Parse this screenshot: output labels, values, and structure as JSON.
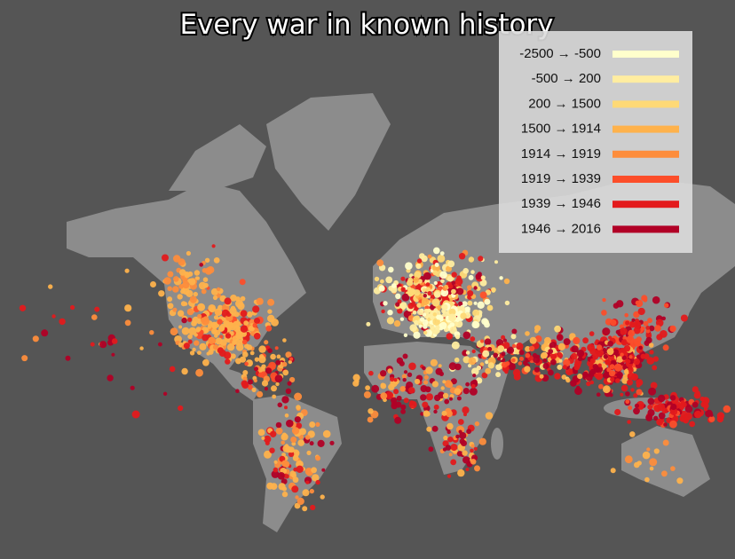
{
  "title": "Every war in known history",
  "legend": [
    {
      "label": "-2500 → -500",
      "color": "#ffffcc"
    },
    {
      "label": "-500 → 200",
      "color": "#ffeda0"
    },
    {
      "label": "200 → 1500",
      "color": "#fed976"
    },
    {
      "label": "1500 → 1914",
      "color": "#feb24c"
    },
    {
      "label": "1914 → 1919",
      "color": "#fd8d3c"
    },
    {
      "label": "1919 → 1939",
      "color": "#fc4e2a"
    },
    {
      "label": "1939 → 1946",
      "color": "#e31a1c"
    },
    {
      "label": "1946 → 2016",
      "color": "#b10026"
    }
  ]
}
